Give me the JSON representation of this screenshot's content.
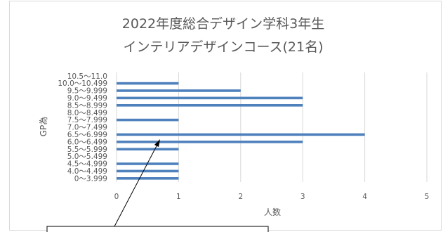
{
  "chart_data": {
    "type": "bar",
    "orientation": "horizontal",
    "title": [
      "2022年度総合デザイン学科3年生",
      "インテリアデザインコース(21名)"
    ],
    "xlabel": "人数",
    "ylabel": "GP為",
    "xlim": [
      0,
      5
    ],
    "xticks": [
      "0",
      "1",
      "2",
      "3",
      "4",
      "5"
    ],
    "grid": "vertical",
    "legend": "none",
    "bar_color": "#4f81bd",
    "categories": [
      "0〜3.999",
      "4.0〜4.499",
      "4.5〜4.999",
      "5.0〜5.499",
      "5.5〜5.999",
      "6.0〜6.499",
      "6.5〜6.999",
      "7.0〜7.499",
      "7.5〜7.999",
      "8.0〜8.499",
      "8.5〜8.999",
      "9.0〜9.499",
      "9.5〜9.999",
      "10.0〜10.499",
      "10.5〜11.0"
    ],
    "values": [
      1,
      1,
      1,
      0,
      1,
      3,
      4,
      0,
      1,
      0,
      3,
      3,
      2,
      1,
      0
    ]
  }
}
